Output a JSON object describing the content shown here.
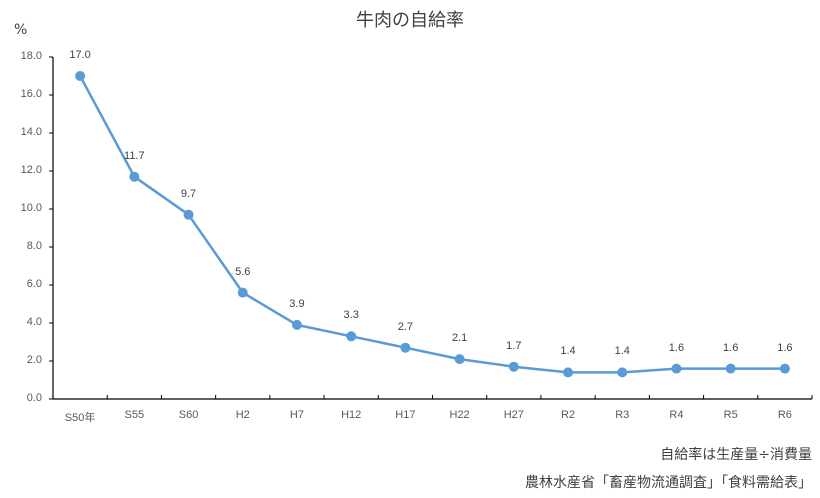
{
  "chart_data": {
    "type": "line",
    "title": "牛肉の自給率",
    "ylabel": "%",
    "xlabel": "",
    "ylim": [
      0,
      18
    ],
    "yticks": [
      "0.0",
      "2.0",
      "4.0",
      "6.0",
      "8.0",
      "10.0",
      "12.0",
      "14.0",
      "16.0",
      "18.0"
    ],
    "grid": false,
    "legend": null,
    "categories": [
      "S50年",
      "S55",
      "S60",
      "H2",
      "H7",
      "H12",
      "H17",
      "H22",
      "H27",
      "R2",
      "R3",
      "R4",
      "R5",
      "R6"
    ],
    "series": [
      {
        "name": "牛肉の自給率",
        "color": "#5B9BD5",
        "values": [
          17.0,
          11.7,
          9.7,
          5.6,
          3.9,
          3.3,
          2.7,
          2.1,
          1.7,
          1.4,
          1.4,
          1.6,
          1.6,
          1.6
        ],
        "labels": [
          "17.0",
          "11.7",
          "9.7",
          "5.6",
          "3.9",
          "3.3",
          "2.7",
          "2.1",
          "1.7",
          "1.4",
          "1.4",
          "1.6",
          "1.6",
          "1.6"
        ]
      }
    ],
    "annotations": [
      "自給率は生産量÷消費量",
      "農林水産省「畜産物流通調査」「食料需給表」"
    ]
  },
  "notes": {
    "formula": "自給率は生産量÷消費量",
    "source": "農林水産省「畜産物流通調査」「食料需給表」"
  }
}
